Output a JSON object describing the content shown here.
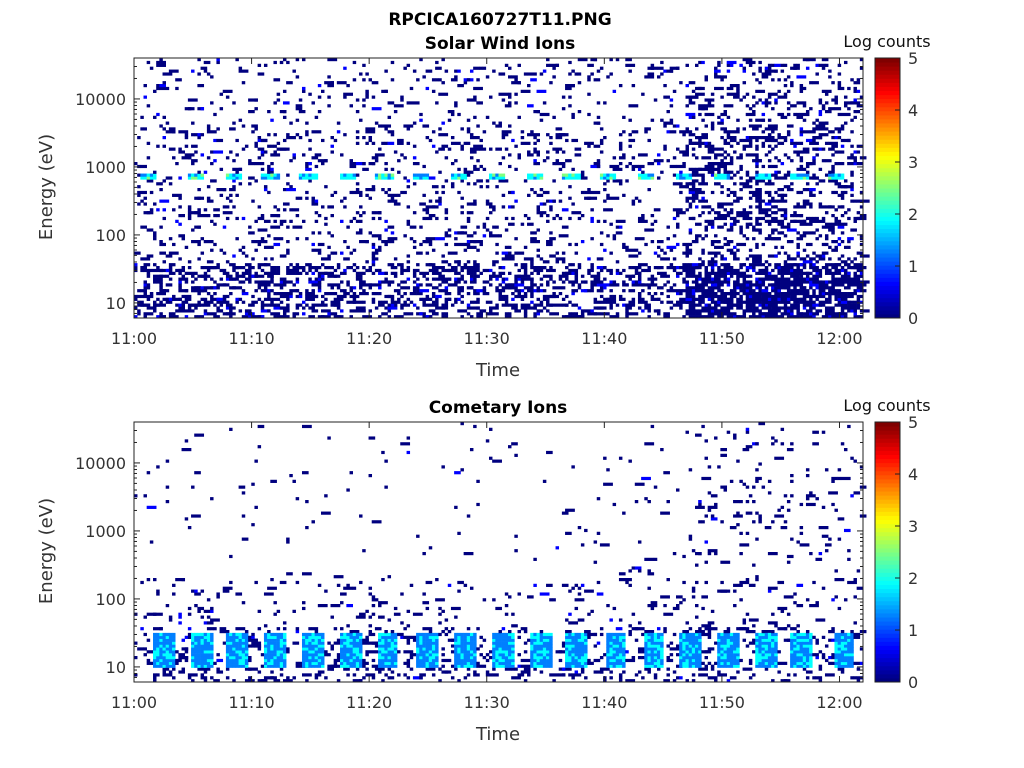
{
  "figure": {
    "title": "RPCICA160727T11.PNG"
  },
  "colormap": [
    "#00007f",
    "#0000ff",
    "#007fff",
    "#00ffff",
    "#7fff7f",
    "#ffff00",
    "#ff7f00",
    "#ff0000",
    "#7f0000"
  ],
  "chart_data": [
    {
      "type": "heatmap",
      "title": "Solar Wind Ions",
      "xlabel": "Time",
      "ylabel": "Energy (eV)",
      "x_ticks": [
        "11:00",
        "11:10",
        "11:20",
        "11:30",
        "11:40",
        "11:50",
        "12:00"
      ],
      "x_tick_minutes": [
        0,
        10,
        20,
        30,
        40,
        50,
        60
      ],
      "xlim_minutes": [
        0,
        62
      ],
      "y_ticks": [
        "10",
        "100",
        "1000",
        "10000"
      ],
      "y_tick_values": [
        10,
        100,
        1000,
        10000
      ],
      "ylim": [
        6,
        40000
      ],
      "y_scale": "log",
      "colorbar": {
        "label": "Log counts",
        "min": 0,
        "max": 5,
        "ticks": [
          "0",
          "1",
          "2",
          "3",
          "4",
          "5"
        ]
      },
      "peaks_minutes": [
        1.2,
        5.2,
        8.4,
        11.6,
        14.8,
        18.1,
        21.3,
        24.4,
        27.6,
        30.8,
        34.0,
        37.2,
        40.4,
        43.6,
        46.8,
        50.0,
        53.4,
        56.6,
        59.6
      ],
      "peak_energy_ev": 720,
      "peak_log_counts": 2.0,
      "background_log_counts": 0.1
    },
    {
      "type": "heatmap",
      "title": "Cometary Ions",
      "xlabel": "Time",
      "ylabel": "Energy (eV)",
      "x_ticks": [
        "11:00",
        "11:10",
        "11:20",
        "11:30",
        "11:40",
        "11:50",
        "12:00"
      ],
      "x_tick_minutes": [
        0,
        10,
        20,
        30,
        40,
        50,
        60
      ],
      "xlim_minutes": [
        0,
        62
      ],
      "y_ticks": [
        "10",
        "100",
        "1000",
        "10000"
      ],
      "y_tick_values": [
        10,
        100,
        1000,
        10000
      ],
      "ylim": [
        6,
        40000
      ],
      "y_scale": "log",
      "colorbar": {
        "label": "Log counts",
        "min": 0,
        "max": 5,
        "ticks": [
          "0",
          "1",
          "2",
          "3",
          "4",
          "5"
        ]
      },
      "peaks_minutes": [
        2.5,
        5.8,
        8.8,
        12.0,
        15.2,
        18.4,
        21.6,
        25.0,
        28.2,
        31.4,
        34.6,
        37.6,
        41.0,
        44.2,
        47.4,
        50.6,
        53.8,
        56.8,
        60.4
      ],
      "peak_energy_ev": 18,
      "peak_log_counts": 1.6,
      "background_log_counts": 0.1
    }
  ]
}
